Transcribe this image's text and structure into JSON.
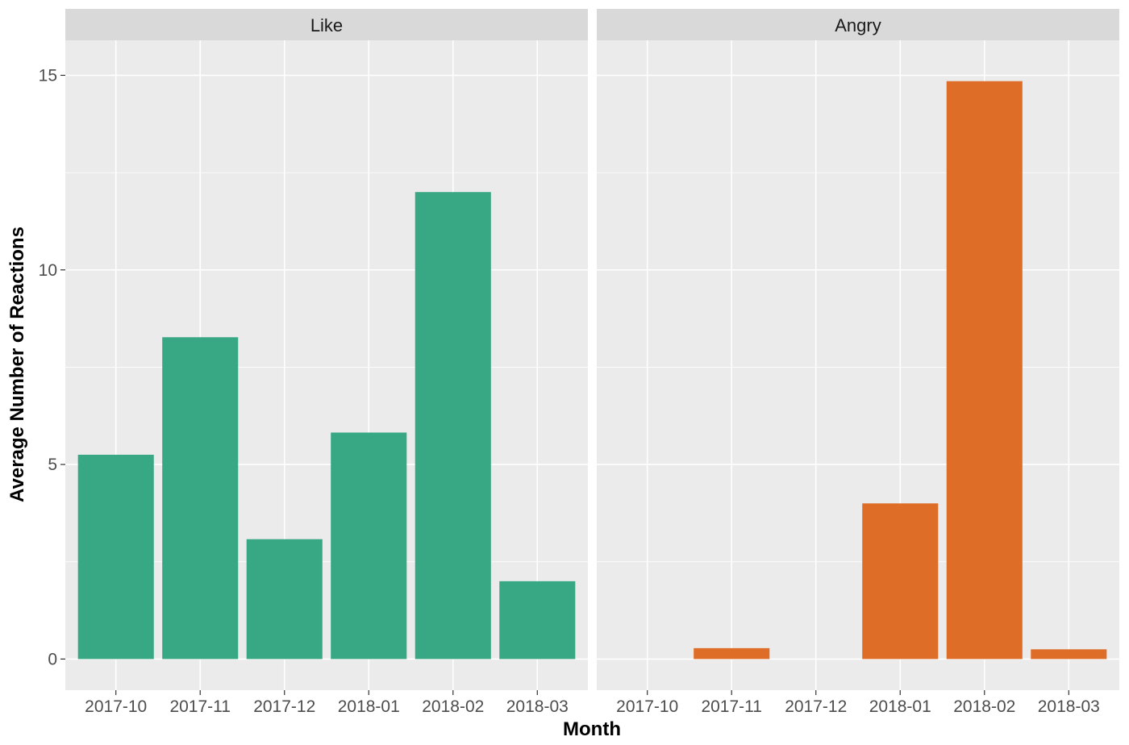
{
  "chart_data": {
    "type": "bar",
    "xlabel": "Month",
    "ylabel": "Average Number of Reactions",
    "ylim": [
      -0.8,
      15.9
    ],
    "y_ticks": [
      0,
      5,
      10,
      15
    ],
    "y_tick_labels": [
      "0",
      "5",
      "10",
      "15"
    ],
    "categories": [
      "2017-10",
      "2017-11",
      "2017-12",
      "2018-01",
      "2018-02",
      "2018-03"
    ],
    "grid": true,
    "facets": [
      {
        "label": "Like",
        "color": "#38a783",
        "values": [
          5.25,
          8.27,
          3.08,
          5.82,
          12.0,
          2.0
        ]
      },
      {
        "label": "Angry",
        "color": "#de6d27",
        "values": [
          0,
          0.28,
          0,
          4.0,
          14.85,
          0.25
        ]
      }
    ]
  },
  "colors": {
    "panel_background": "#ebebeb",
    "strip_background": "#d9d9d9",
    "grid": "#ffffff"
  }
}
